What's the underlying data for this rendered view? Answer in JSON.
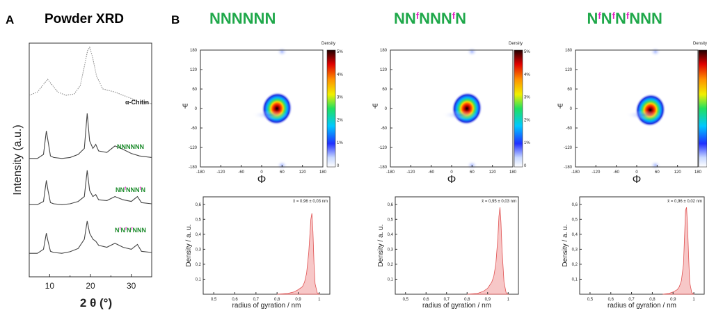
{
  "panel_a": {
    "letter": "A",
    "title": "Powder XRD",
    "ylabel": "Intensity (a.u.)",
    "xlabel": "2 θ (°)",
    "xticks": [
      "10",
      "20",
      "30"
    ]
  },
  "panel_b": {
    "letter": "B",
    "ram_xlabel": "Φ",
    "ram_ylabel": "Ψ",
    "ram_ticks": [
      "180",
      "120",
      "60",
      "0",
      "-60",
      "-120",
      "-180"
    ],
    "ram_xticks": [
      "-180",
      "-120",
      "-60",
      "0",
      "60",
      "120",
      "180"
    ],
    "cbar_title": "Density",
    "cbar_ticks": [
      "5%",
      "4%",
      "3%",
      "2%",
      "1%",
      "0"
    ],
    "rg_xlabel": "radius of gyration / nm",
    "rg_ylabel": "Density / a. u.",
    "rg_xticks": [
      "0,5",
      "0,6",
      "0,7",
      "0,8",
      "0,9",
      "1"
    ],
    "rg_yticks": [
      "0,6",
      "0,5",
      "0,4",
      "0,3",
      "0,2",
      "0,1"
    ]
  },
  "sequences": [
    {
      "base": [
        "NNNNNN"
      ],
      "rg_mean": "x̄ = 0,96 ± 0,03 nm"
    },
    {
      "base": [
        "NN",
        "NNN",
        "N"
      ],
      "rg_mean": "x̄ = 0,95 ± 0,03 nm"
    },
    {
      "base": [
        "N",
        "N",
        "N",
        "NNN"
      ],
      "rg_mean": "x̄ = 0,96 ± 0,02 nm"
    }
  ],
  "f_mark": "f",
  "colors": {
    "accent_green": "#1fa84a",
    "f_magenta": "#e020c0",
    "fill_pink": "#f4b4b4",
    "line_red": "#e05050"
  },
  "chart_data": [
    {
      "type": "line",
      "title": "Powder XRD",
      "xlabel": "2 θ (°)",
      "ylabel": "Intensity (a.u.)",
      "xlim": [
        5,
        35
      ],
      "series": [
        {
          "name": "α-Chitin",
          "style": "dotted",
          "x": [
            5,
            7,
            8.5,
            9.5,
            10.5,
            12,
            14,
            16,
            17.5,
            18.5,
            19.3,
            19.8,
            20.5,
            21.5,
            23,
            26,
            28,
            30,
            32,
            35
          ],
          "y": [
            0.25,
            0.3,
            0.42,
            0.5,
            0.42,
            0.3,
            0.25,
            0.27,
            0.4,
            0.7,
            0.95,
            1.0,
            0.85,
            0.55,
            0.35,
            0.3,
            0.25,
            0.2,
            0.15,
            0.12
          ]
        },
        {
          "name": "NNNNNN",
          "x": [
            5,
            7,
            8.5,
            9.2,
            9.6,
            10.2,
            11,
            13,
            15,
            17,
            18.5,
            19.2,
            19.8,
            20.6,
            21.3,
            22,
            24,
            26,
            28,
            30,
            32,
            35
          ],
          "y": [
            0.1,
            0.1,
            0.18,
            0.65,
            0.45,
            0.15,
            0.12,
            0.1,
            0.12,
            0.18,
            0.3,
            1.0,
            0.45,
            0.3,
            0.38,
            0.25,
            0.22,
            0.35,
            0.28,
            0.2,
            0.15,
            0.12
          ]
        },
        {
          "name": "NN^fNNN^fN",
          "x": [
            5,
            7,
            8.5,
            9.2,
            9.6,
            10.2,
            11,
            13,
            15,
            17,
            18.5,
            19.2,
            19.8,
            20.6,
            21.3,
            22,
            24,
            26,
            28,
            30,
            31.5,
            32.5,
            35
          ],
          "y": [
            0.1,
            0.1,
            0.18,
            0.7,
            0.45,
            0.15,
            0.12,
            0.1,
            0.12,
            0.18,
            0.3,
            0.95,
            0.45,
            0.3,
            0.35,
            0.22,
            0.2,
            0.3,
            0.22,
            0.18,
            0.3,
            0.15,
            0.12
          ]
        },
        {
          "name": "N^fN^fN^fNNN",
          "x": [
            5,
            7,
            8.5,
            9.2,
            9.6,
            10.2,
            11,
            13,
            15,
            17,
            18.5,
            19.2,
            19.8,
            20.6,
            21.3,
            22,
            24,
            26,
            28,
            30,
            31.5,
            32.5,
            35
          ],
          "y": [
            0.1,
            0.1,
            0.2,
            0.6,
            0.4,
            0.15,
            0.12,
            0.1,
            0.14,
            0.22,
            0.45,
            0.9,
            0.6,
            0.45,
            0.4,
            0.3,
            0.25,
            0.35,
            0.25,
            0.2,
            0.32,
            0.15,
            0.12
          ]
        }
      ]
    },
    {
      "type": "heatmap",
      "title": "NNNNNN",
      "xlabel": "Φ",
      "ylabel": "Ψ",
      "xlim": [
        -180,
        180
      ],
      "ylim": [
        -180,
        180
      ],
      "colorbar": {
        "label": "Density",
        "range": [
          "0",
          "5%"
        ]
      },
      "hotspots": [
        {
          "phi": 45,
          "psi": 0,
          "intensity": "peak"
        },
        {
          "phi": 25,
          "psi": -20,
          "intensity": "low"
        },
        {
          "phi": 60,
          "psi": 175,
          "intensity": "faint"
        },
        {
          "phi": 60,
          "psi": -175,
          "intensity": "faint"
        }
      ]
    },
    {
      "type": "heatmap",
      "title": "NN^fNNN^fN",
      "xlabel": "Φ",
      "ylabel": "Ψ",
      "xlim": [
        -180,
        180
      ],
      "ylim": [
        -180,
        180
      ],
      "colorbar": {
        "label": "Density",
        "range": [
          "0",
          "5%"
        ]
      },
      "hotspots": [
        {
          "phi": 45,
          "psi": 0,
          "intensity": "peak"
        },
        {
          "phi": 25,
          "psi": -20,
          "intensity": "low"
        },
        {
          "phi": 60,
          "psi": 175,
          "intensity": "faint"
        },
        {
          "phi": 60,
          "psi": -175,
          "intensity": "faint"
        }
      ]
    },
    {
      "type": "heatmap",
      "title": "N^fN^fN^fNNN",
      "xlabel": "Φ",
      "ylabel": "Ψ",
      "xlim": [
        -180,
        180
      ],
      "ylim": [
        -180,
        180
      ],
      "colorbar": {
        "label": "Density"
      },
      "hotspots": [
        {
          "phi": 40,
          "psi": -5,
          "intensity": "peak"
        },
        {
          "phi": 20,
          "psi": -20,
          "intensity": "low"
        },
        {
          "phi": 55,
          "psi": 175,
          "intensity": "faint"
        },
        {
          "phi": 55,
          "psi": -175,
          "intensity": "faint"
        }
      ]
    },
    {
      "type": "area",
      "xlabel": "radius of gyration / nm",
      "ylabel": "Density / a. u.",
      "xlim": [
        0.45,
        1.05
      ],
      "ylim": [
        0,
        0.65
      ],
      "annotation": "x̄ = 0,96 ± 0,03 nm",
      "x": [
        0.8,
        0.85,
        0.88,
        0.9,
        0.92,
        0.93,
        0.94,
        0.95,
        0.96,
        0.965,
        0.97,
        0.975,
        0.98,
        0.99,
        1.0
      ],
      "y": [
        0,
        0.005,
        0.015,
        0.03,
        0.05,
        0.08,
        0.14,
        0.28,
        0.5,
        0.54,
        0.42,
        0.2,
        0.07,
        0.01,
        0
      ]
    },
    {
      "type": "area",
      "xlabel": "radius of gyration / nm",
      "ylabel": "Density / a. u.",
      "xlim": [
        0.45,
        1.05
      ],
      "ylim": [
        0,
        0.65
      ],
      "annotation": "x̄ = 0,95 ± 0,03 nm",
      "x": [
        0.8,
        0.85,
        0.88,
        0.9,
        0.92,
        0.93,
        0.94,
        0.95,
        0.955,
        0.96,
        0.965,
        0.97,
        0.98,
        0.99,
        1.0
      ],
      "y": [
        0,
        0.005,
        0.02,
        0.04,
        0.08,
        0.12,
        0.2,
        0.38,
        0.52,
        0.58,
        0.48,
        0.3,
        0.08,
        0.01,
        0
      ]
    },
    {
      "type": "area",
      "xlabel": "radius of gyration / nm",
      "ylabel": "Density / a. u.",
      "xlim": [
        0.45,
        1.05
      ],
      "ylim": [
        0,
        0.65
      ],
      "annotation": "x̄ = 0,96 ± 0,02 nm",
      "x": [
        0.85,
        0.88,
        0.9,
        0.92,
        0.93,
        0.94,
        0.95,
        0.955,
        0.96,
        0.965,
        0.97,
        0.975,
        0.98,
        0.99,
        1.0
      ],
      "y": [
        0,
        0.005,
        0.015,
        0.03,
        0.05,
        0.09,
        0.2,
        0.38,
        0.56,
        0.58,
        0.45,
        0.25,
        0.08,
        0.01,
        0
      ]
    }
  ]
}
